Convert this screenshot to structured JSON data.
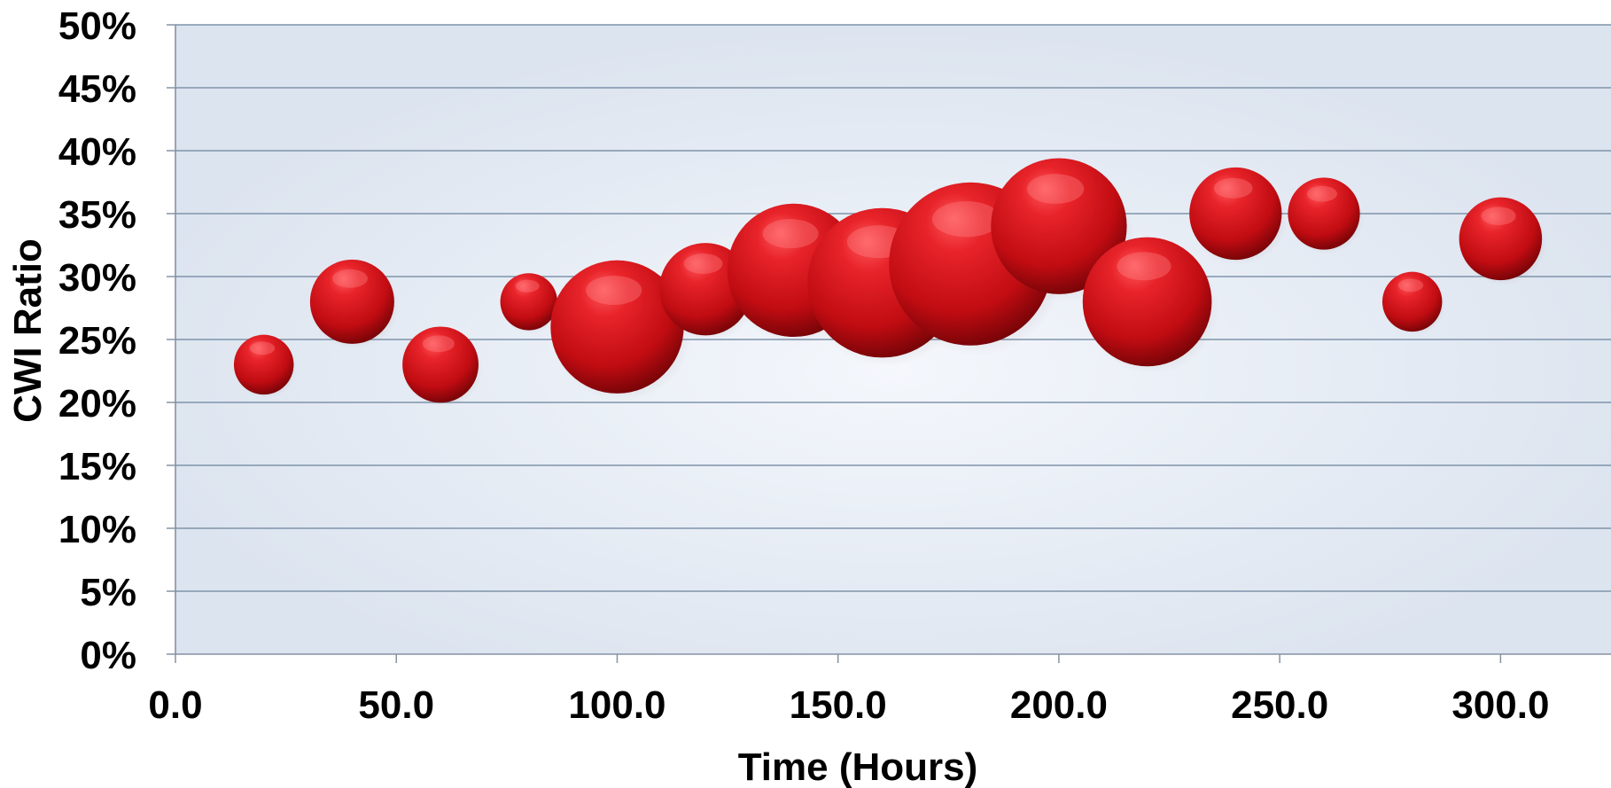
{
  "chart_data": {
    "type": "scatter",
    "subtype": "bubble",
    "title": "",
    "xlabel": "Time (Hours)",
    "ylabel": "CWI Ratio",
    "xlim": [
      0,
      325
    ],
    "ylim": [
      0,
      0.5
    ],
    "x_ticks": [
      0,
      50,
      100,
      150,
      200,
      250,
      300
    ],
    "x_tick_labels": [
      "0.0",
      "50.0",
      "100.0",
      "150.0",
      "200.0",
      "250.0",
      "300.0"
    ],
    "y_ticks": [
      0,
      0.05,
      0.1,
      0.15,
      0.2,
      0.25,
      0.3,
      0.35,
      0.4,
      0.45,
      0.5
    ],
    "y_tick_labels": [
      "0%",
      "5%",
      "10%",
      "15%",
      "20%",
      "25%",
      "30%",
      "35%",
      "40%",
      "45%",
      "50%"
    ],
    "grid": "horizontal",
    "legend": "none",
    "plot_background": "#dde5f0",
    "bubble_color": "#d4141a",
    "series": [
      {
        "points": [
          {
            "x": 20,
            "y": 0.23,
            "size": 0.44
          },
          {
            "x": 40,
            "y": 0.28,
            "size": 0.62
          },
          {
            "x": 60,
            "y": 0.23,
            "size": 0.56
          },
          {
            "x": 80,
            "y": 0.28,
            "size": 0.42
          },
          {
            "x": 100,
            "y": 0.26,
            "size": 0.98
          },
          {
            "x": 120,
            "y": 0.29,
            "size": 0.68
          },
          {
            "x": 140,
            "y": 0.305,
            "size": 0.98
          },
          {
            "x": 160,
            "y": 0.295,
            "size": 1.1
          },
          {
            "x": 180,
            "y": 0.31,
            "size": 1.2
          },
          {
            "x": 200,
            "y": 0.34,
            "size": 1.0
          },
          {
            "x": 220,
            "y": 0.28,
            "size": 0.95
          },
          {
            "x": 240,
            "y": 0.35,
            "size": 0.68
          },
          {
            "x": 260,
            "y": 0.35,
            "size": 0.53
          },
          {
            "x": 280,
            "y": 0.28,
            "size": 0.44
          },
          {
            "x": 300,
            "y": 0.33,
            "size": 0.61
          }
        ]
      }
    ]
  }
}
